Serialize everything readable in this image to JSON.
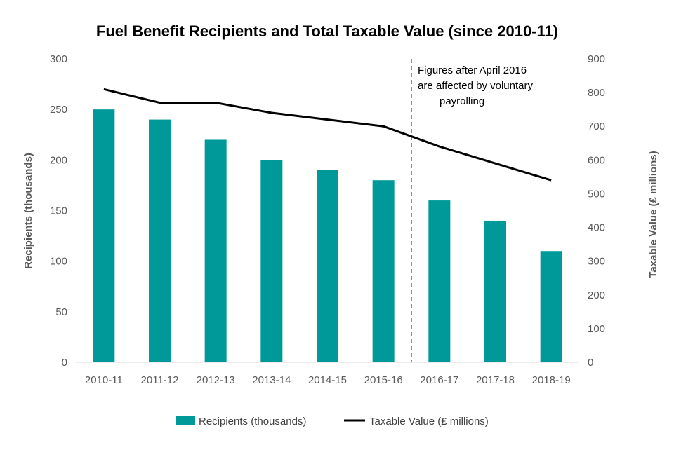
{
  "chart_data": {
    "type": "bar",
    "title": "Fuel Benefit Recipients and Total Taxable Value (since 2010-11)",
    "categories": [
      "2010-11",
      "2011-12",
      "2012-13",
      "2013-14",
      "2014-15",
      "2015-16",
      "2016-17",
      "2017-18",
      "2018-19"
    ],
    "series": [
      {
        "name": "Recipients (thousands)",
        "type": "bar",
        "axis": "left",
        "color": "#009999",
        "values": [
          250,
          240,
          220,
          200,
          190,
          180,
          160,
          140,
          110
        ]
      },
      {
        "name": "Taxable Value (£ millions)",
        "type": "line",
        "axis": "right",
        "color": "#000000",
        "values": [
          810,
          770,
          770,
          740,
          720,
          700,
          640,
          590,
          540
        ]
      }
    ],
    "ylabel": "Recipients (thousands)",
    "y2label": "Taxable Value (£ millions)",
    "ylim": [
      0,
      300
    ],
    "y2lim": [
      0,
      900
    ],
    "yticks": [
      0,
      50,
      100,
      150,
      200,
      250,
      300
    ],
    "y2ticks": [
      0,
      100,
      200,
      300,
      400,
      500,
      600,
      700,
      800,
      900
    ],
    "annotation": {
      "lines": [
        "Figures after April 2016",
        "are affected by voluntary",
        "payrolling"
      ],
      "divider_after_category": "2015-16",
      "divider_color": "#5B9BD5"
    },
    "legend_position": "bottom",
    "grid": false
  }
}
